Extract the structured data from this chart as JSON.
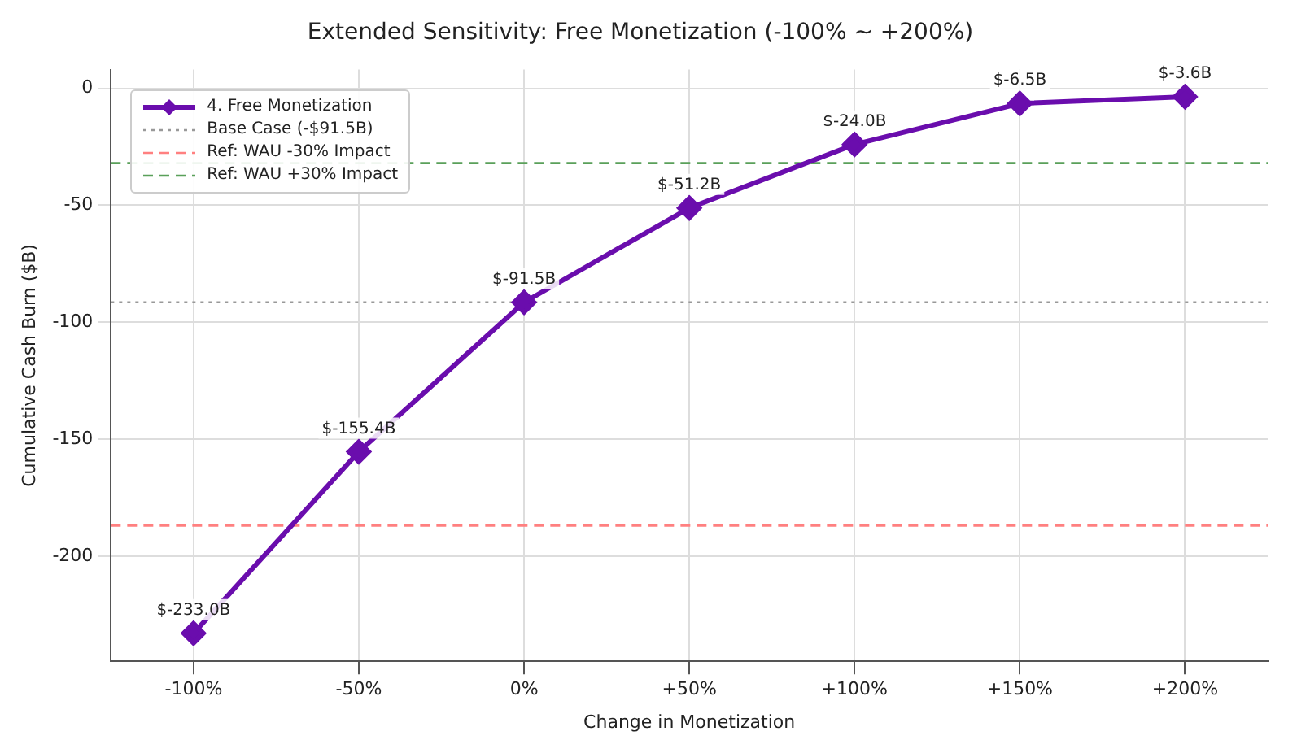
{
  "chart_data": {
    "type": "line",
    "title": "Extended Sensitivity: Free Monetization (-100% ~ +200%)",
    "xlabel": "Change in Monetization",
    "ylabel": "Cumulative Cash Burn ($B)",
    "categories": [
      "-100%",
      "-50%",
      "0%",
      "+50%",
      "+100%",
      "+150%",
      "+200%"
    ],
    "series": [
      {
        "name": "4. Free Monetization",
        "color": "#6a0dad",
        "values": [
          -233.0,
          -155.4,
          -91.5,
          -51.2,
          -24.0,
          -6.5,
          -3.6
        ],
        "value_labels": [
          "$-233.0B",
          "$-155.4B",
          "$-91.5B",
          "$-51.2B",
          "$-24.0B",
          "$-6.5B",
          "$-3.6B"
        ]
      }
    ],
    "ref_lines": [
      {
        "axis": "y",
        "value": -91.5,
        "label": "Base Case (-$91.5B)",
        "color": "#999999",
        "line_style": "dotted"
      },
      {
        "axis": "y",
        "value": -187,
        "label": "Ref: WAU -30% Impact",
        "color": "#ff8080",
        "line_style": "dashed"
      },
      {
        "axis": "y",
        "value": -32,
        "label": "Ref: WAU +30% Impact",
        "color": "#5aa05a",
        "line_style": "dashed"
      }
    ],
    "ylim": [
      -245,
      8
    ],
    "yticks": [
      0,
      -50,
      -100,
      -150,
      -200
    ],
    "grid": true,
    "legend": "top left",
    "marker": "diamond",
    "line_style": "solid"
  }
}
